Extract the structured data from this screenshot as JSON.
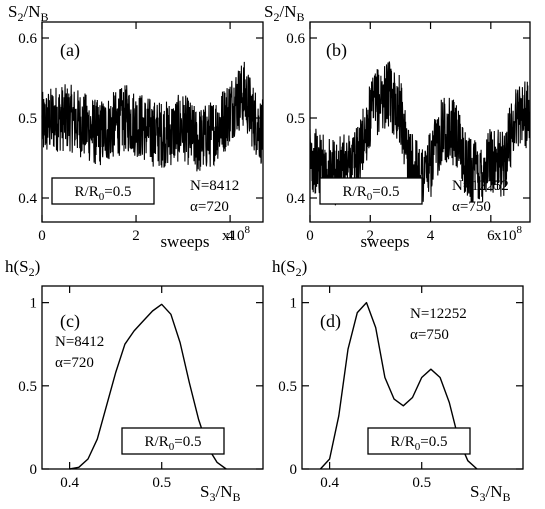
{
  "chart_data": [
    {
      "id": "a",
      "type": "line",
      "letter": "(a)",
      "ylabel_main": "S",
      "ylabel_sub": "2",
      "ylabel_tail": "/N",
      "ylabel_tail_sub": "B",
      "xlabel": "sweeps",
      "x_multiplier_base": "x10",
      "x_multiplier_exp": "8",
      "xlim": [
        0,
        4.7
      ],
      "ylim": [
        0.37,
        0.62
      ],
      "xticks": [
        0,
        2,
        4
      ],
      "yticks": [
        0.4,
        0.5,
        0.6
      ],
      "xtick_labels": [
        "0",
        "2",
        "4"
      ],
      "ytick_labels": [
        "0.4",
        "0.5",
        "0.6"
      ],
      "box_label_main": "R/R",
      "box_label_sub": "0",
      "box_label_tail": "=0.5",
      "notes": [
        "N=8412",
        "α=720"
      ],
      "series": [
        {
          "x": [
            0.0,
            0.3,
            0.6,
            0.9,
            1.2,
            1.5,
            1.8,
            2.1,
            2.4,
            2.7,
            3.0,
            3.3,
            3.6,
            3.9,
            4.1,
            4.3,
            4.5,
            4.7
          ],
          "y": [
            0.49,
            0.5,
            0.5,
            0.49,
            0.48,
            0.49,
            0.5,
            0.49,
            0.48,
            0.48,
            0.49,
            0.47,
            0.48,
            0.5,
            0.52,
            0.53,
            0.5,
            0.48
          ]
        }
      ]
    },
    {
      "id": "b",
      "type": "line",
      "letter": "(b)",
      "ylabel_main": "S",
      "ylabel_sub": "2",
      "ylabel_tail": "/N",
      "ylabel_tail_sub": "B",
      "xlabel": "sweeps",
      "x_multiplier_base": "x10",
      "x_multiplier_exp": "8",
      "xlim": [
        0,
        7.3
      ],
      "ylim": [
        0.37,
        0.62
      ],
      "xticks": [
        0,
        2,
        4,
        6
      ],
      "yticks": [
        0.4,
        0.5,
        0.6
      ],
      "xtick_labels": [
        "0",
        "2",
        "4",
        "6"
      ],
      "ytick_labels": [
        "0.4",
        "0.5",
        "0.6"
      ],
      "box_label_main": "R/R",
      "box_label_sub": "0",
      "box_label_tail": "=0.5",
      "notes": [
        "N=12252",
        "α=750"
      ],
      "series": [
        {
          "x": [
            0.0,
            0.4,
            0.8,
            1.2,
            1.6,
            1.9,
            2.2,
            2.6,
            3.0,
            3.3,
            3.7,
            4.0,
            4.4,
            4.8,
            5.2,
            5.6,
            6.0,
            6.4,
            6.8,
            7.0,
            7.3
          ],
          "y": [
            0.45,
            0.44,
            0.43,
            0.44,
            0.45,
            0.49,
            0.52,
            0.53,
            0.51,
            0.44,
            0.43,
            0.44,
            0.49,
            0.48,
            0.44,
            0.43,
            0.45,
            0.44,
            0.5,
            0.51,
            0.5
          ]
        }
      ]
    },
    {
      "id": "c",
      "type": "line",
      "letter": "(c)",
      "ylabel_main": "h(S",
      "ylabel_sub": "2",
      "ylabel_tail": ")",
      "xlabel_main": "S",
      "xlabel_sub": "3",
      "xlabel_tail": "/N",
      "xlabel_tail_sub": "B",
      "xlim": [
        0.37,
        0.61
      ],
      "ylim": [
        0,
        1.1
      ],
      "xticks": [
        0.4,
        0.5
      ],
      "yticks": [
        0,
        0.5,
        1
      ],
      "xtick_labels": [
        "0.4",
        "0.5"
      ],
      "ytick_labels": [
        "0",
        "0.5",
        "1"
      ],
      "box_label_main": "R/R",
      "box_label_sub": "0",
      "box_label_tail": "=0.5",
      "notes": [
        "N=8412",
        "α=720"
      ],
      "series": [
        {
          "x": [
            0.4,
            0.41,
            0.42,
            0.43,
            0.44,
            0.45,
            0.46,
            0.47,
            0.48,
            0.49,
            0.5,
            0.51,
            0.52,
            0.53,
            0.54,
            0.55,
            0.56,
            0.57
          ],
          "y": [
            0.0,
            0.01,
            0.06,
            0.18,
            0.38,
            0.58,
            0.75,
            0.83,
            0.89,
            0.95,
            0.99,
            0.93,
            0.76,
            0.52,
            0.3,
            0.13,
            0.04,
            0.0
          ]
        }
      ]
    },
    {
      "id": "d",
      "type": "line",
      "letter": "(d)",
      "ylabel_main": "h(S",
      "ylabel_sub": "2",
      "ylabel_tail": ")",
      "xlabel_main": "S",
      "xlabel_sub": "3",
      "xlabel_tail": "/N",
      "xlabel_tail_sub": "B",
      "xlim": [
        0.37,
        0.61
      ],
      "ylim": [
        0,
        1.1
      ],
      "xticks": [
        0.4,
        0.5
      ],
      "yticks": [
        0,
        0.5,
        1
      ],
      "xtick_labels": [
        "0.4",
        "0.5"
      ],
      "ytick_labels": [
        "0",
        "0.5",
        "1"
      ],
      "box_label_main": "R/R",
      "box_label_sub": "0",
      "box_label_tail": "=0.5",
      "notes": [
        "N=12252",
        "α=750"
      ],
      "series": [
        {
          "x": [
            0.39,
            0.4,
            0.41,
            0.42,
            0.43,
            0.44,
            0.45,
            0.46,
            0.47,
            0.48,
            0.49,
            0.5,
            0.51,
            0.52,
            0.53,
            0.54,
            0.55,
            0.56
          ],
          "y": [
            0.0,
            0.06,
            0.32,
            0.72,
            0.94,
            1.0,
            0.85,
            0.55,
            0.42,
            0.38,
            0.43,
            0.55,
            0.6,
            0.55,
            0.4,
            0.18,
            0.05,
            0.0
          ]
        }
      ]
    }
  ]
}
